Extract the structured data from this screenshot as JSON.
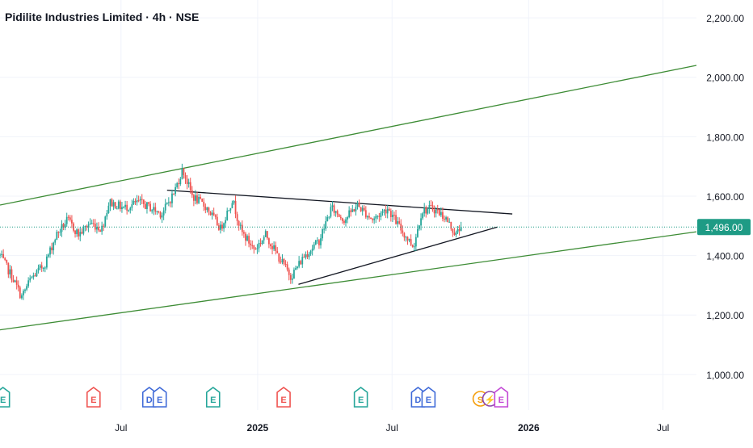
{
  "header": {
    "title": "Pidilite Industries Limited · 4h · NSE"
  },
  "colors": {
    "channel": "#3d8c35",
    "trendline": "#131722",
    "bull": "#26a69a",
    "bear": "#ef5350",
    "price_line": "#1e9b85",
    "grid": "#f0f3fa",
    "axis_text": "#131722"
  },
  "chart_data": {
    "type": "candlestick",
    "title": "Pidilite Industries Limited · 4h · NSE",
    "ylim": [
      880,
      2260
    ],
    "y_ticks": [
      "2,200.00",
      "2,000.00",
      "1,800.00",
      "1,600.00",
      "1,400.00",
      "1,200.00",
      "1,000.00"
    ],
    "y_tick_values": [
      2200,
      2000,
      1800,
      1600,
      1400,
      1200,
      1000
    ],
    "x_ticks": [
      "Jul",
      "2025",
      "Jul",
      "2026",
      "Jul"
    ],
    "x_tick_dates": [
      "2024-07-01",
      "2025-01-01",
      "2025-07-01",
      "2026-01-01",
      "2026-07-01"
    ],
    "xlim": [
      "2024-01-20",
      "2026-08-15"
    ],
    "last_price": 1496,
    "last_price_label": "1,496.00",
    "price_path": [
      [
        "2024-01-20",
        1400
      ],
      [
        "2024-02-05",
        1330
      ],
      [
        "2024-02-18",
        1260
      ],
      [
        "2024-03-01",
        1320
      ],
      [
        "2024-03-20",
        1370
      ],
      [
        "2024-04-05",
        1470
      ],
      [
        "2024-04-20",
        1520
      ],
      [
        "2024-05-05",
        1470
      ],
      [
        "2024-05-20",
        1510
      ],
      [
        "2024-06-05",
        1490
      ],
      [
        "2024-06-15",
        1580
      ],
      [
        "2024-07-05",
        1560
      ],
      [
        "2024-07-25",
        1580
      ],
      [
        "2024-08-10",
        1560
      ],
      [
        "2024-08-25",
        1540
      ],
      [
        "2024-09-10",
        1610
      ],
      [
        "2024-09-22",
        1690
      ],
      [
        "2024-10-05",
        1600
      ],
      [
        "2024-10-25",
        1560
      ],
      [
        "2024-11-12",
        1490
      ],
      [
        "2024-11-28",
        1590
      ],
      [
        "2024-12-10",
        1480
      ],
      [
        "2024-12-28",
        1420
      ],
      [
        "2025-01-12",
        1470
      ],
      [
        "2025-01-28",
        1400
      ],
      [
        "2025-02-15",
        1330
      ],
      [
        "2025-03-05",
        1400
      ],
      [
        "2025-03-25",
        1450
      ],
      [
        "2025-04-10",
        1560
      ],
      [
        "2025-04-28",
        1520
      ],
      [
        "2025-05-15",
        1570
      ],
      [
        "2025-06-05",
        1520
      ],
      [
        "2025-06-25",
        1560
      ],
      [
        "2025-07-15",
        1480
      ],
      [
        "2025-07-30",
        1430
      ],
      [
        "2025-08-10",
        1550
      ],
      [
        "2025-08-25",
        1560
      ],
      [
        "2025-09-10",
        1530
      ],
      [
        "2025-09-25",
        1470
      ],
      [
        "2025-10-02",
        1496
      ]
    ],
    "lines": [
      {
        "name": "channel-upper",
        "from": [
          "2024-01-20",
          1570
        ],
        "to": [
          "2026-08-15",
          2040
        ]
      },
      {
        "name": "channel-lower",
        "from": [
          "2024-01-20",
          1150
        ],
        "to": [
          "2026-08-15",
          1480
        ]
      },
      {
        "name": "triangle-upper",
        "from": [
          "2024-09-01",
          1620
        ],
        "to": [
          "2025-12-10",
          1540
        ]
      },
      {
        "name": "triangle-lower",
        "from": [
          "2025-02-25",
          1303
        ],
        "to": [
          "2025-11-20",
          1496
        ]
      }
    ],
    "events": [
      {
        "date": "2024-01-24",
        "labels": [
          "E"
        ],
        "color": "#26a69a"
      },
      {
        "date": "2024-05-25",
        "labels": [
          "E"
        ],
        "color": "#ef5350"
      },
      {
        "date": "2024-08-08",
        "labels": [
          "D",
          "E"
        ],
        "color": "#3f6ad8"
      },
      {
        "date": "2024-11-02",
        "labels": [
          "E"
        ],
        "color": "#26a69a"
      },
      {
        "date": "2025-02-05",
        "labels": [
          "E"
        ],
        "color": "#ef5350"
      },
      {
        "date": "2025-05-20",
        "labels": [
          "E"
        ],
        "color": "#26a69a"
      },
      {
        "date": "2025-08-05",
        "labels": [
          "D",
          "E"
        ],
        "color": "#3f6ad8"
      },
      {
        "date": "2025-10-28",
        "labels": [
          "S"
        ],
        "color": "#f59e0b"
      },
      {
        "date": "2025-11-10",
        "labels": [
          "⚡"
        ],
        "color": "#8e44ad"
      },
      {
        "date": "2025-11-25",
        "labels": [
          "E"
        ],
        "color": "#c349d6"
      }
    ]
  }
}
